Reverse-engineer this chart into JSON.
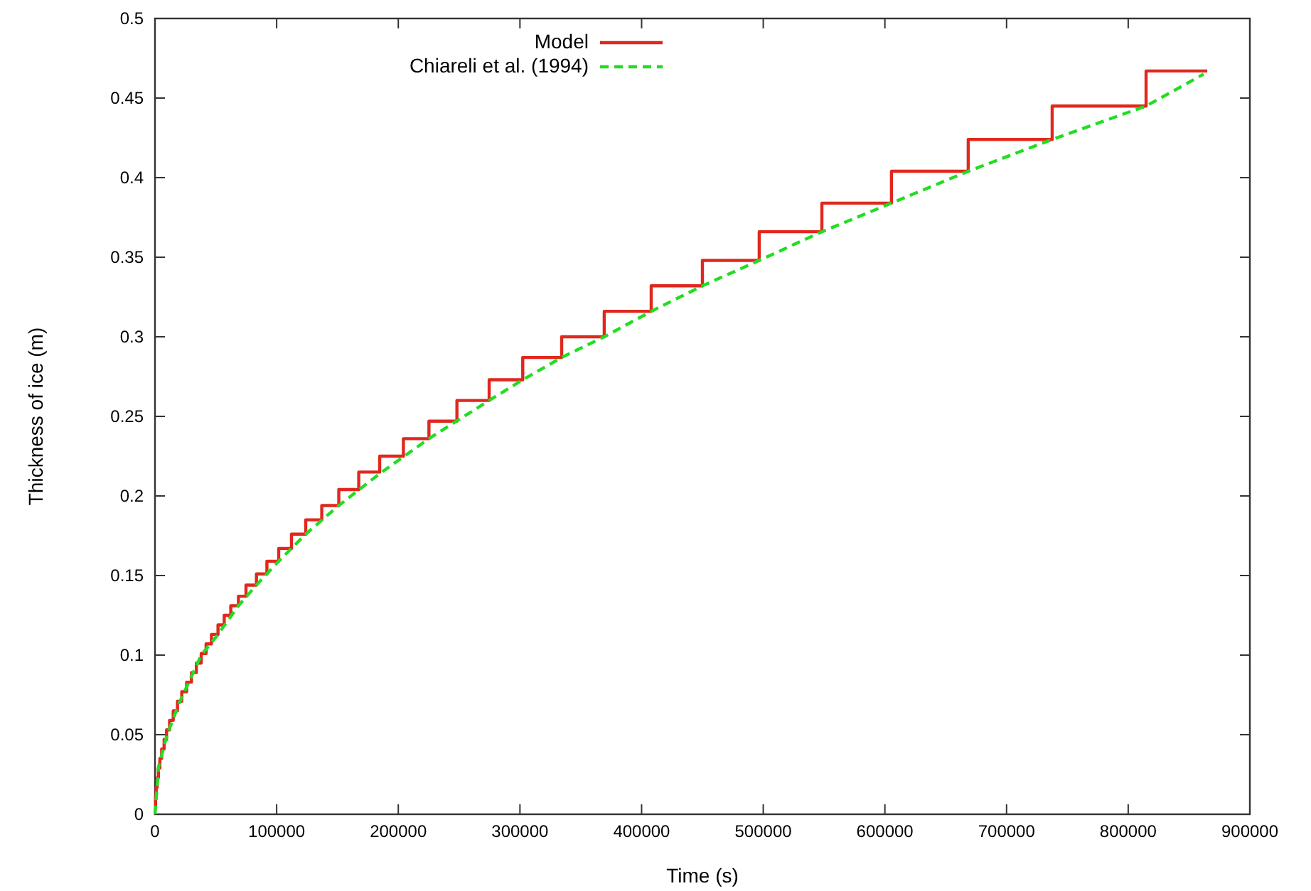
{
  "chart_data": {
    "type": "line",
    "xlabel": "Time (s)",
    "ylabel": "Thickness of ice (m)",
    "xlim": [
      0,
      900000
    ],
    "xticks": [
      0,
      100000,
      200000,
      300000,
      400000,
      500000,
      600000,
      700000,
      800000,
      900000
    ],
    "ylim": [
      0,
      0.5
    ],
    "yticks": [
      0,
      0.05,
      0.1,
      0.15,
      0.2,
      0.25,
      0.3,
      0.35,
      0.4,
      0.45,
      0.5
    ],
    "grid": false,
    "legend": "top left",
    "series": [
      {
        "name": "Model",
        "type": "step",
        "color": "#e0281e",
        "line_style": "solid",
        "x": [
          0,
          500,
          1000,
          1800,
          2800,
          4000,
          5500,
          7500,
          9500,
          12000,
          15000,
          18500,
          22000,
          26000,
          30000,
          34000,
          38000,
          42000,
          46400,
          51800,
          56900,
          62300,
          68600,
          74800,
          83400,
          92000,
          101700,
          112200,
          123900,
          137100,
          151100,
          167500,
          184700,
          204200,
          225200,
          248200,
          274700,
          302300,
          334300,
          369300,
          407900,
          450000,
          496700,
          548200,
          605400,
          668500,
          737500,
          814700,
          865000
        ],
        "values": [
          0.005,
          0.011,
          0.017,
          0.023,
          0.029,
          0.035,
          0.041,
          0.047,
          0.053,
          0.059,
          0.065,
          0.071,
          0.077,
          0.083,
          0.089,
          0.095,
          0.101,
          0.107,
          0.113,
          0.119,
          0.125,
          0.131,
          0.137,
          0.144,
          0.151,
          0.159,
          0.167,
          0.176,
          0.185,
          0.194,
          0.204,
          0.215,
          0.225,
          0.236,
          0.247,
          0.26,
          0.273,
          0.287,
          0.3,
          0.316,
          0.332,
          0.348,
          0.366,
          0.384,
          0.404,
          0.424,
          0.445,
          0.467,
          0.467
        ]
      },
      {
        "name": "Chiareli et al. (1994)",
        "type": "line",
        "color": "#22dd22",
        "line_style": "dashed",
        "x": [
          0,
          3000,
          10000,
          20000,
          38000,
          51800,
          68600,
          83400,
          101700,
          123900,
          151100,
          184700,
          225200,
          274700,
          302300,
          334300,
          369300,
          407900,
          450000,
          496700,
          548200,
          605400,
          668500,
          737500,
          814700,
          862000
        ],
        "values": [
          0,
          0.03,
          0.05,
          0.07,
          0.1,
          0.113,
          0.131,
          0.144,
          0.159,
          0.176,
          0.194,
          0.214,
          0.236,
          0.26,
          0.273,
          0.287,
          0.3,
          0.316,
          0.332,
          0.348,
          0.366,
          0.384,
          0.404,
          0.424,
          0.445,
          0.465
        ]
      }
    ]
  }
}
